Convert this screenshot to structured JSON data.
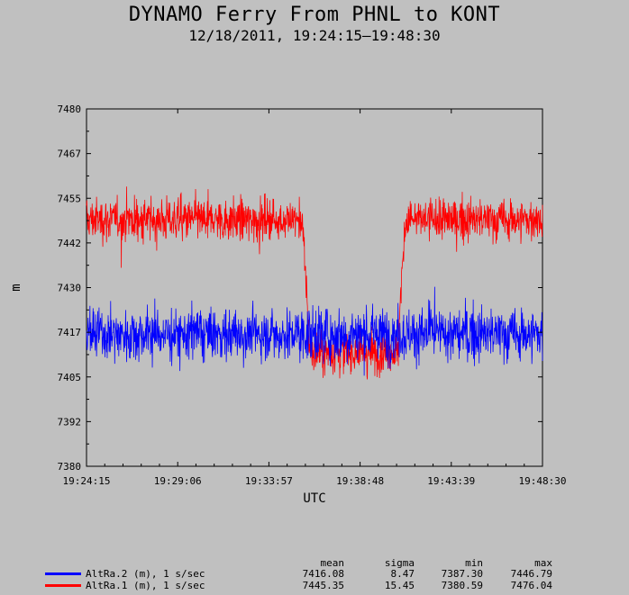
{
  "chart_data": {
    "type": "line",
    "title": "DYNAMO Ferry From PHNL to KONT",
    "subtitle": "12/18/2011, 19:24:15–19:48:30",
    "xlabel": "UTC",
    "ylabel": "m",
    "xlim": [
      "19:24:15",
      "19:48:30"
    ],
    "ylim": [
      7380,
      7480
    ],
    "x_ticks": [
      "19:24:15",
      "19:29:06",
      "19:33:57",
      "19:38:48",
      "19:43:39",
      "19:48:30"
    ],
    "y_ticks": [
      "7380",
      "7392",
      "7405",
      "7417",
      "7430",
      "7442",
      "7455",
      "7467",
      "7480"
    ],
    "series": [
      {
        "name": "AltRa.2 (m), 1 s/sec",
        "color": "#0000ff",
        "mean": "7416.08",
        "sigma": "8.47",
        "min": "7387.30",
        "max": "7446.79"
      },
      {
        "name": "AltRa.1 (m), 1 s/sec",
        "color": "#ff0000",
        "mean": "7445.35",
        "sigma": "15.45",
        "min": "7380.59",
        "max": "7476.04"
      }
    ],
    "grid": false
  },
  "legend": {
    "col_mean": "mean",
    "col_sigma": "sigma",
    "col_min": "min",
    "col_max": "max"
  }
}
